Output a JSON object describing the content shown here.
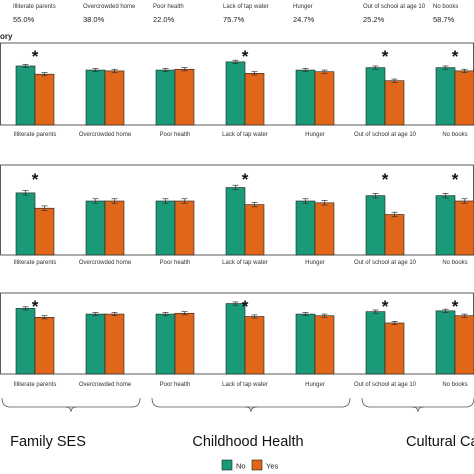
{
  "chart_data": {
    "type": "bar",
    "categories": [
      "Illiterate parents",
      "Overcrowded home",
      "Poor health",
      "Lack of tap water",
      "Hunger",
      "Out of school at age 10",
      "No books"
    ],
    "prevalence": [
      "55.0%",
      "38.0%",
      "22.0%",
      "75.7%",
      "24.7%",
      "25.2%",
      "58.7%"
    ],
    "header_fragment": "ory",
    "asterisk": "*",
    "groups": [
      {
        "label": "Family SES",
        "categories": [
          "Illiterate parents",
          "Overcrowded home",
          "Poor health"
        ]
      },
      {
        "label": "Childhood Health",
        "categories": [
          "Lack of tap water",
          "Hunger"
        ]
      },
      {
        "label": "Cultural Ca",
        "categories": [
          "Out of school at age 10",
          "No books"
        ]
      }
    ],
    "legend": {
      "placement": "bottom-center",
      "entries": [
        "No",
        "Yes"
      ]
    },
    "series_colors": {
      "No": "#1a9a78",
      "Yes": "#e0661a"
    },
    "ylim": [
      0,
      1
    ],
    "panels": [
      {
        "tick_labels": [
          "Illiterate parents",
          "Overcrowded home",
          "Poor health",
          "Lack of tap water",
          "Hunger",
          "Out of school at age 10",
          "No books"
        ],
        "no": [
          0.72,
          0.67,
          0.67,
          0.77,
          0.67,
          0.7,
          0.7
        ],
        "yes": [
          0.62,
          0.66,
          0.68,
          0.63,
          0.65,
          0.54,
          0.66
        ],
        "err": 0.02,
        "significant": [
          true,
          false,
          false,
          true,
          false,
          true,
          true
        ]
      },
      {
        "tick_labels": [
          "Illiterate parents",
          "Overcrowded home",
          "Poor health",
          "Lack of tap water",
          "Hunger",
          "Out of school at age 10",
          "No books"
        ],
        "no": [
          0.69,
          0.6,
          0.6,
          0.75,
          0.6,
          0.66,
          0.66
        ],
        "yes": [
          0.52,
          0.6,
          0.6,
          0.56,
          0.58,
          0.45,
          0.6
        ],
        "err": 0.025,
        "significant": [
          true,
          false,
          false,
          true,
          false,
          true,
          true
        ]
      },
      {
        "tick_labels": [
          "Illiterate parents",
          "Overcrowded home",
          "Poor health",
          "Lack of tap water",
          "Hunger",
          "Out of school at age 10",
          "No books"
        ],
        "no": [
          0.81,
          0.74,
          0.74,
          0.87,
          0.74,
          0.77,
          0.78
        ],
        "yes": [
          0.7,
          0.74,
          0.75,
          0.71,
          0.72,
          0.63,
          0.72
        ],
        "err": 0.02,
        "significant": [
          true,
          false,
          false,
          true,
          false,
          true,
          true
        ]
      }
    ]
  }
}
